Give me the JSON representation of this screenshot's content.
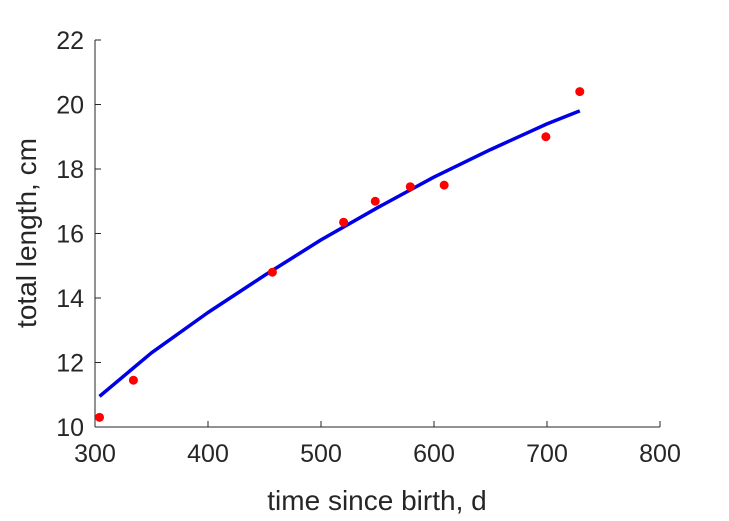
{
  "chart_data": {
    "type": "scatter",
    "xlabel": "time since birth, d",
    "ylabel": "total length, cm",
    "xlim": [
      300,
      800
    ],
    "ylim": [
      10,
      22
    ],
    "xticks": [
      300,
      400,
      500,
      600,
      700,
      800
    ],
    "yticks": [
      10,
      12,
      14,
      16,
      18,
      20,
      22
    ],
    "grid": false,
    "series": [
      {
        "kind": "points",
        "color": "#ff0000",
        "x": [
          304,
          334,
          457,
          520,
          548,
          579,
          609,
          699,
          729
        ],
        "y": [
          10.3,
          11.45,
          14.8,
          16.35,
          17.0,
          17.45,
          17.5,
          19.0,
          20.4
        ]
      },
      {
        "kind": "line",
        "color": "#0000e6",
        "x": [
          304,
          350,
          400,
          450,
          500,
          550,
          600,
          650,
          700,
          729
        ],
        "y": [
          10.95,
          12.3,
          13.55,
          14.7,
          15.8,
          16.8,
          17.75,
          18.6,
          19.4,
          19.8
        ]
      }
    ]
  }
}
